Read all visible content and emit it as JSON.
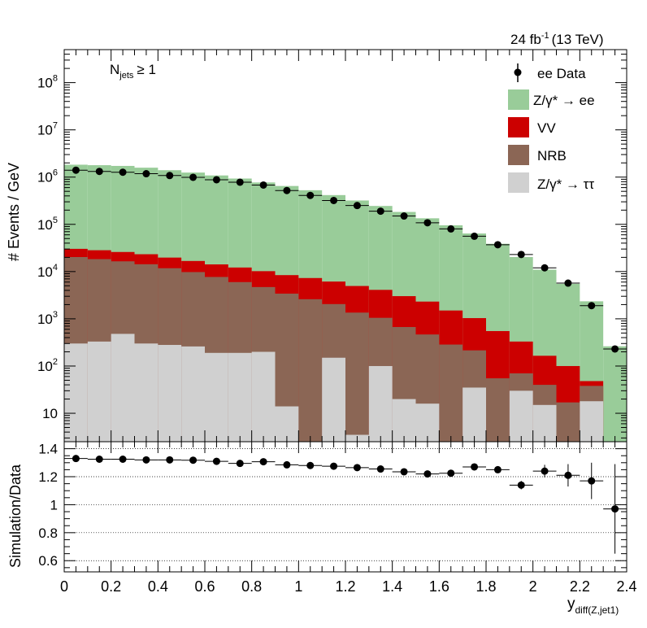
{
  "chart_data": [
    {
      "type": "stacked-histogram",
      "title": "24 fb⁻¹ (13 TeV)",
      "lumi_label": "24 fb",
      "lumi_exp": "-1",
      "energy_label": "(13 TeV)",
      "annotation": "N",
      "annotation_sub": "jets",
      "annotation_rest": "≥ 1",
      "ylabel": "# Events / GeV",
      "yscale": "log",
      "ylim": [
        2.5,
        500000000
      ],
      "xlim": [
        0,
        2.4
      ],
      "bin_edges": [
        0,
        0.1,
        0.2,
        0.3,
        0.4,
        0.5,
        0.6,
        0.7,
        0.8,
        0.9,
        1.0,
        1.1,
        1.2,
        1.3,
        1.4,
        1.5,
        1.6,
        1.7,
        1.8,
        1.9,
        2.0,
        2.1,
        2.2,
        2.3,
        2.4
      ],
      "ytick_labels": [
        "10",
        "10",
        "10",
        "10",
        "10",
        "10",
        "10",
        "10"
      ],
      "ytick_exps": [
        "",
        "2",
        "3",
        "4",
        "5",
        "6",
        "7",
        "8"
      ],
      "ytick_values": [
        10,
        100,
        1000,
        10000,
        100000,
        1000000,
        10000000,
        100000000
      ],
      "legend": [
        {
          "label": "ee Data",
          "kind": "marker"
        },
        {
          "label": "Z/γ* → ee",
          "kind": "fill",
          "color": "#99cc99"
        },
        {
          "label": "VV",
          "kind": "fill",
          "color": "#cc0000"
        },
        {
          "label": "NRB",
          "kind": "fill",
          "color": "#8b6655"
        },
        {
          "label": "Z/γ* → ττ",
          "kind": "fill",
          "color": "#d0d0d0"
        }
      ],
      "series": [
        {
          "name": "Z/γ* → ττ",
          "color": "#d0d0d0",
          "values": [
            300,
            330,
            480,
            300,
            280,
            260,
            190,
            190,
            200,
            14,
            0,
            150,
            3.5,
            100,
            20,
            16,
            0,
            35,
            0,
            30,
            15,
            0,
            18,
            0
          ]
        },
        {
          "name": "NRB",
          "color": "#8b6655",
          "values": [
            20000,
            18000,
            16000,
            14000,
            11500,
            9500,
            7500,
            5800,
            4500,
            3400,
            2600,
            1900,
            1350,
            950,
            650,
            450,
            285,
            180,
            55,
            40,
            25,
            17,
            20,
            0
          ]
        },
        {
          "name": "VV",
          "color": "#cc0000",
          "values": [
            10000,
            10000,
            9500,
            9000,
            8000,
            7000,
            6500,
            6200,
            5500,
            5000,
            4700,
            4100,
            3600,
            3050,
            2350,
            1850,
            1215,
            820,
            495,
            260,
            125,
            83,
            10,
            0
          ]
        },
        {
          "name": "Z/γ* → ee",
          "color": "#99cc99",
          "values": [
            1800000,
            1760000,
            1700000,
            1560000,
            1380000,
            1230000,
            1070000,
            920000,
            760000,
            640000,
            520000,
            410000,
            315000,
            241000,
            180000,
            132000,
            94000,
            63000,
            38200,
            20000,
            10800,
            5400,
            2300,
            262
          ]
        }
      ],
      "data": {
        "name": "ee Data",
        "values": [
          1400000,
          1320000,
          1270000,
          1180000,
          1080000,
          990000,
          880000,
          780000,
          680000,
          520000,
          410000,
          320000,
          250000,
          190000,
          150000,
          108000,
          80000,
          56000,
          37000,
          23000,
          12000,
          5700,
          1900,
          230
        ]
      }
    },
    {
      "type": "scatter",
      "ylabel": "Simulation/Data",
      "xlabel": "y",
      "xlabel_sub": "diff(Z,jet1)",
      "ylim": [
        0.52,
        1.45
      ],
      "xlim": [
        0,
        2.4
      ],
      "xtick_labels": [
        "0",
        "0.2",
        "0.4",
        "0.6",
        "0.8",
        "1",
        "1.2",
        "1.4",
        "1.6",
        "1.8",
        "2",
        "2.2",
        "2.4"
      ],
      "xtick_values": [
        0,
        0.2,
        0.4,
        0.6,
        0.8,
        1.0,
        1.2,
        1.4,
        1.6,
        1.8,
        2.0,
        2.2,
        2.4
      ],
      "ytick_labels": [
        "0.6",
        "0.8",
        "1",
        "1.2",
        "1.4"
      ],
      "ytick_values": [
        0.6,
        0.8,
        1.0,
        1.2,
        1.4
      ],
      "x": [
        0.05,
        0.15,
        0.25,
        0.35,
        0.45,
        0.55,
        0.65,
        0.75,
        0.85,
        0.95,
        1.05,
        1.15,
        1.25,
        1.35,
        1.45,
        1.55,
        1.65,
        1.75,
        1.85,
        1.95,
        2.05,
        2.15,
        2.25,
        2.35
      ],
      "values": [
        1.33,
        1.325,
        1.325,
        1.32,
        1.32,
        1.318,
        1.31,
        1.295,
        1.307,
        1.285,
        1.28,
        1.275,
        1.265,
        1.255,
        1.235,
        1.22,
        1.225,
        1.27,
        1.25,
        1.14,
        1.24,
        1.21,
        1.17,
        0.97
      ],
      "errors": [
        0.004,
        0.004,
        0.004,
        0.004,
        0.004,
        0.004,
        0.004,
        0.004,
        0.004,
        0.005,
        0.005,
        0.005,
        0.006,
        0.006,
        0.007,
        0.008,
        0.009,
        0.012,
        0.02,
        0.03,
        0.045,
        0.08,
        0.13,
        0.32
      ]
    }
  ]
}
